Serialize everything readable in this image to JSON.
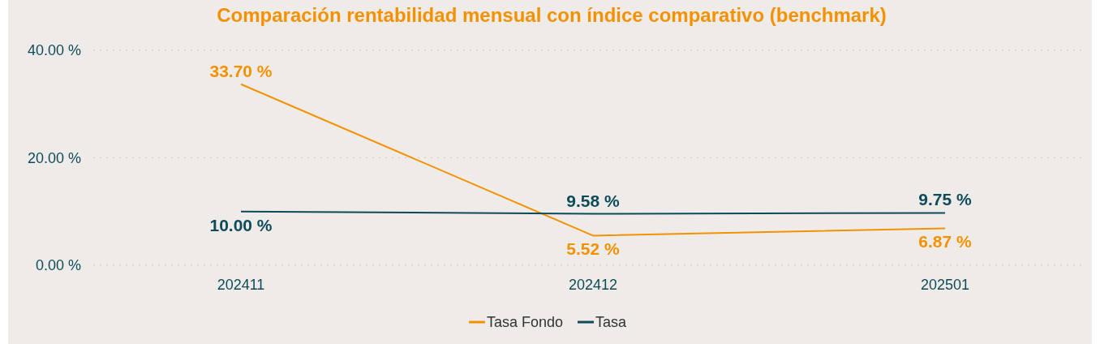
{
  "chart_data": {
    "type": "line",
    "title": "Comparación rentabilidad mensual con índice comparativo (benchmark)",
    "categories": [
      "202411",
      "202412",
      "202501"
    ],
    "series": [
      {
        "name": "Tasa Fondo",
        "color": "#f39200",
        "values": [
          33.7,
          5.52,
          6.87
        ],
        "value_labels": [
          "33.70 %",
          "5.52 %",
          "6.87 %"
        ]
      },
      {
        "name": "Tasa",
        "color": "#0e4b5a",
        "values": [
          10.0,
          9.58,
          9.75
        ],
        "value_labels": [
          "10.00 %",
          "9.58 %",
          "9.75 %"
        ]
      }
    ],
    "ylim": [
      0,
      40
    ],
    "yticks": [
      {
        "value": 0,
        "label": "0.00 %"
      },
      {
        "value": 20,
        "label": "20.00 %"
      },
      {
        "value": 40,
        "label": "40.00 %"
      }
    ],
    "grid": "y",
    "legend": "bottom",
    "marker": "none",
    "line_style": "solid"
  }
}
